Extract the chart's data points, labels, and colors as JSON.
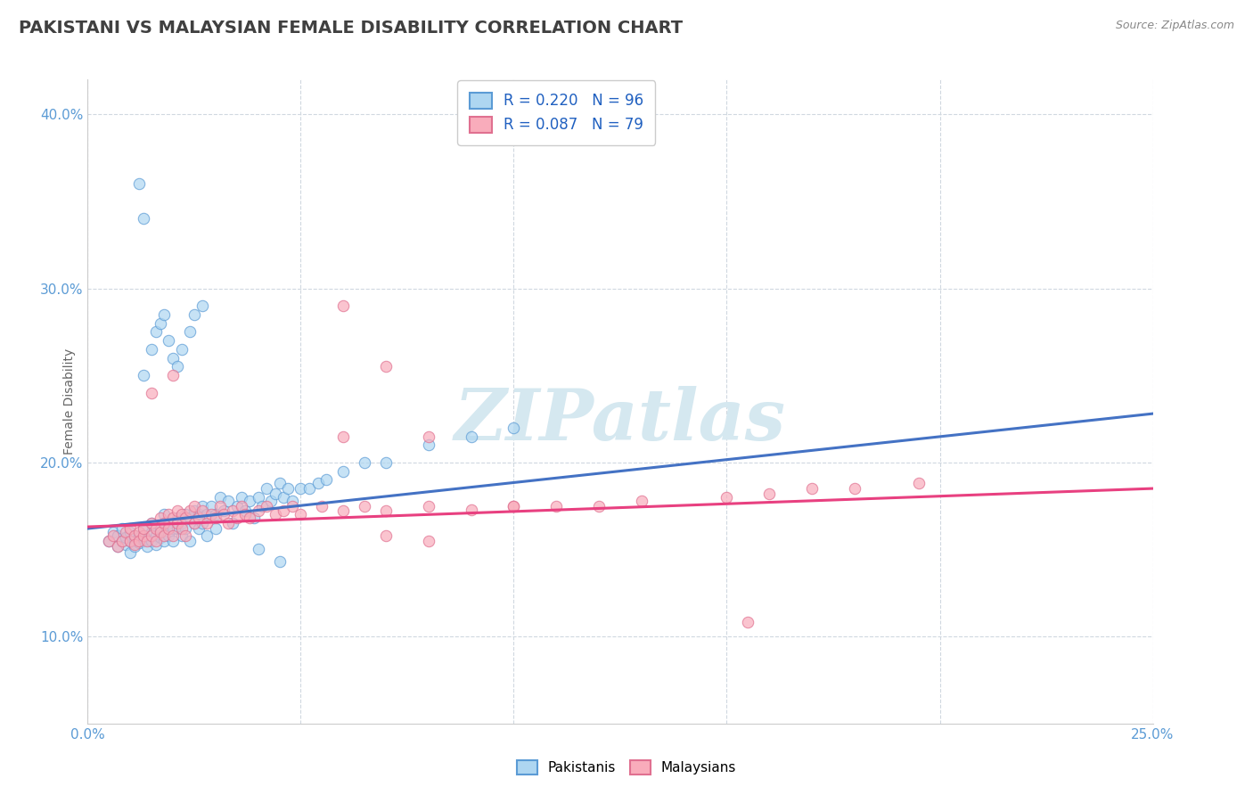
{
  "title": "PAKISTANI VS MALAYSIAN FEMALE DISABILITY CORRELATION CHART",
  "source_text": "Source: ZipAtlas.com",
  "ylabel": "Female Disability",
  "xlim": [
    0.0,
    0.25
  ],
  "ylim": [
    0.05,
    0.42
  ],
  "yticks": [
    0.1,
    0.2,
    0.3,
    0.4
  ],
  "ytick_labels": [
    "10.0%",
    "20.0%",
    "30.0%",
    "40.0%"
  ],
  "xtick_labels": [
    "0.0%",
    "",
    "",
    "",
    "",
    "25.0%"
  ],
  "xticks": [
    0.0,
    0.05,
    0.1,
    0.15,
    0.2,
    0.25
  ],
  "pakistani_R": 0.22,
  "pakistani_N": 96,
  "malaysian_R": 0.087,
  "malaysian_N": 79,
  "color_pakistani_fill": "#AED6F1",
  "color_pakistani_edge": "#5B9BD5",
  "color_malaysian_fill": "#F9ACBB",
  "color_malaysian_edge": "#E07090",
  "color_pakistani_line": "#4472C4",
  "color_malaysian_line": "#E84080",
  "watermark": "ZIPatlas",
  "watermark_color": "#D5E8F0",
  "title_fontsize": 14,
  "axis_label_fontsize": 10,
  "legend_fontsize": 12,
  "pakistani_scatter": [
    [
      0.005,
      0.155
    ],
    [
      0.006,
      0.16
    ],
    [
      0.007,
      0.152
    ],
    [
      0.007,
      0.158
    ],
    [
      0.008,
      0.155
    ],
    [
      0.008,
      0.162
    ],
    [
      0.009,
      0.153
    ],
    [
      0.009,
      0.157
    ],
    [
      0.01,
      0.155
    ],
    [
      0.01,
      0.16
    ],
    [
      0.01,
      0.148
    ],
    [
      0.011,
      0.155
    ],
    [
      0.011,
      0.158
    ],
    [
      0.011,
      0.152
    ],
    [
      0.012,
      0.157
    ],
    [
      0.012,
      0.154
    ],
    [
      0.013,
      0.158
    ],
    [
      0.013,
      0.155
    ],
    [
      0.013,
      0.162
    ],
    [
      0.014,
      0.156
    ],
    [
      0.014,
      0.152
    ],
    [
      0.015,
      0.16
    ],
    [
      0.015,
      0.155
    ],
    [
      0.015,
      0.165
    ],
    [
      0.016,
      0.158
    ],
    [
      0.016,
      0.153
    ],
    [
      0.017,
      0.162
    ],
    [
      0.017,
      0.157
    ],
    [
      0.018,
      0.16
    ],
    [
      0.018,
      0.155
    ],
    [
      0.018,
      0.17
    ],
    [
      0.019,
      0.165
    ],
    [
      0.019,
      0.158
    ],
    [
      0.02,
      0.162
    ],
    [
      0.02,
      0.155
    ],
    [
      0.021,
      0.168
    ],
    [
      0.021,
      0.162
    ],
    [
      0.022,
      0.165
    ],
    [
      0.022,
      0.158
    ],
    [
      0.023,
      0.17
    ],
    [
      0.023,
      0.162
    ],
    [
      0.024,
      0.168
    ],
    [
      0.024,
      0.155
    ],
    [
      0.025,
      0.165
    ],
    [
      0.025,
      0.172
    ],
    [
      0.026,
      0.17
    ],
    [
      0.026,
      0.162
    ],
    [
      0.027,
      0.175
    ],
    [
      0.027,
      0.165
    ],
    [
      0.028,
      0.17
    ],
    [
      0.028,
      0.158
    ],
    [
      0.029,
      0.175
    ],
    [
      0.03,
      0.17
    ],
    [
      0.03,
      0.162
    ],
    [
      0.031,
      0.18
    ],
    [
      0.032,
      0.172
    ],
    [
      0.033,
      0.178
    ],
    [
      0.034,
      0.165
    ],
    [
      0.035,
      0.175
    ],
    [
      0.036,
      0.18
    ],
    [
      0.037,
      0.172
    ],
    [
      0.038,
      0.178
    ],
    [
      0.039,
      0.168
    ],
    [
      0.04,
      0.18
    ],
    [
      0.041,
      0.175
    ],
    [
      0.042,
      0.185
    ],
    [
      0.043,
      0.178
    ],
    [
      0.044,
      0.182
    ],
    [
      0.045,
      0.188
    ],
    [
      0.046,
      0.18
    ],
    [
      0.047,
      0.185
    ],
    [
      0.048,
      0.178
    ],
    [
      0.05,
      0.185
    ],
    [
      0.052,
      0.185
    ],
    [
      0.054,
      0.188
    ],
    [
      0.056,
      0.19
    ],
    [
      0.06,
      0.195
    ],
    [
      0.065,
      0.2
    ],
    [
      0.07,
      0.2
    ],
    [
      0.08,
      0.21
    ],
    [
      0.09,
      0.215
    ],
    [
      0.1,
      0.22
    ],
    [
      0.013,
      0.25
    ],
    [
      0.015,
      0.265
    ],
    [
      0.016,
      0.275
    ],
    [
      0.017,
      0.28
    ],
    [
      0.018,
      0.285
    ],
    [
      0.019,
      0.27
    ],
    [
      0.02,
      0.26
    ],
    [
      0.021,
      0.255
    ],
    [
      0.022,
      0.265
    ],
    [
      0.024,
      0.275
    ],
    [
      0.025,
      0.285
    ],
    [
      0.027,
      0.29
    ],
    [
      0.012,
      0.36
    ],
    [
      0.013,
      0.34
    ],
    [
      0.04,
      0.15
    ],
    [
      0.045,
      0.143
    ]
  ],
  "malaysian_scatter": [
    [
      0.005,
      0.155
    ],
    [
      0.006,
      0.158
    ],
    [
      0.007,
      0.152
    ],
    [
      0.008,
      0.155
    ],
    [
      0.009,
      0.16
    ],
    [
      0.01,
      0.155
    ],
    [
      0.01,
      0.162
    ],
    [
      0.011,
      0.158
    ],
    [
      0.011,
      0.153
    ],
    [
      0.012,
      0.16
    ],
    [
      0.012,
      0.155
    ],
    [
      0.013,
      0.158
    ],
    [
      0.013,
      0.162
    ],
    [
      0.014,
      0.155
    ],
    [
      0.015,
      0.165
    ],
    [
      0.015,
      0.158
    ],
    [
      0.016,
      0.162
    ],
    [
      0.016,
      0.155
    ],
    [
      0.017,
      0.168
    ],
    [
      0.017,
      0.16
    ],
    [
      0.018,
      0.165
    ],
    [
      0.018,
      0.158
    ],
    [
      0.019,
      0.17
    ],
    [
      0.019,
      0.162
    ],
    [
      0.02,
      0.168
    ],
    [
      0.02,
      0.158
    ],
    [
      0.021,
      0.172
    ],
    [
      0.021,
      0.165
    ],
    [
      0.022,
      0.17
    ],
    [
      0.022,
      0.162
    ],
    [
      0.023,
      0.168
    ],
    [
      0.023,
      0.158
    ],
    [
      0.024,
      0.172
    ],
    [
      0.025,
      0.165
    ],
    [
      0.025,
      0.175
    ],
    [
      0.026,
      0.168
    ],
    [
      0.027,
      0.172
    ],
    [
      0.028,
      0.165
    ],
    [
      0.029,
      0.17
    ],
    [
      0.03,
      0.168
    ],
    [
      0.031,
      0.175
    ],
    [
      0.032,
      0.17
    ],
    [
      0.033,
      0.165
    ],
    [
      0.034,
      0.172
    ],
    [
      0.035,
      0.168
    ],
    [
      0.036,
      0.175
    ],
    [
      0.037,
      0.17
    ],
    [
      0.038,
      0.168
    ],
    [
      0.04,
      0.172
    ],
    [
      0.042,
      0.175
    ],
    [
      0.044,
      0.17
    ],
    [
      0.046,
      0.172
    ],
    [
      0.048,
      0.175
    ],
    [
      0.05,
      0.17
    ],
    [
      0.055,
      0.175
    ],
    [
      0.06,
      0.172
    ],
    [
      0.065,
      0.175
    ],
    [
      0.07,
      0.172
    ],
    [
      0.08,
      0.175
    ],
    [
      0.09,
      0.173
    ],
    [
      0.1,
      0.175
    ],
    [
      0.11,
      0.175
    ],
    [
      0.12,
      0.175
    ],
    [
      0.13,
      0.178
    ],
    [
      0.15,
      0.18
    ],
    [
      0.16,
      0.182
    ],
    [
      0.17,
      0.185
    ],
    [
      0.18,
      0.185
    ],
    [
      0.195,
      0.188
    ],
    [
      0.015,
      0.24
    ],
    [
      0.02,
      0.25
    ],
    [
      0.06,
      0.29
    ],
    [
      0.07,
      0.255
    ],
    [
      0.08,
      0.215
    ],
    [
      0.06,
      0.215
    ],
    [
      0.1,
      0.175
    ],
    [
      0.155,
      0.108
    ],
    [
      0.08,
      0.155
    ],
    [
      0.07,
      0.158
    ]
  ]
}
